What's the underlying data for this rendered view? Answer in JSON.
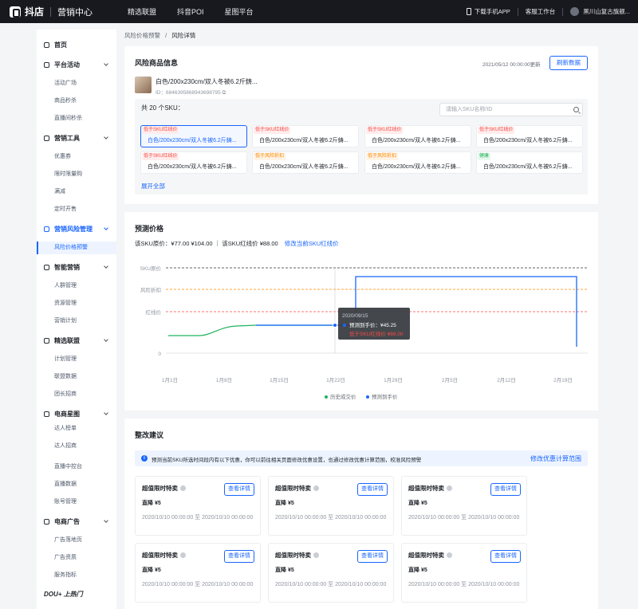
{
  "topbar": {
    "brand": "抖店",
    "sub": "营销中心",
    "nav": [
      "精选联盟",
      "抖音POI",
      "星图平台"
    ],
    "download": "下载手机APP",
    "workbench": "客服工作台",
    "shop": "黑川山复古旗舰..."
  },
  "sidebar": {
    "home": "首页",
    "groups": [
      {
        "label": "平台活动",
        "icon": "calendar-icon",
        "items": [
          "活动广场",
          "商品秒杀",
          "直播间秒杀"
        ]
      },
      {
        "label": "营销工具",
        "icon": "briefcase-icon",
        "items": [
          "优惠券",
          "限时限量购",
          "满减",
          "定时开售"
        ]
      },
      {
        "label": "营销风险管理",
        "icon": "shield-icon",
        "items": [
          "风险价格预警"
        ]
      },
      {
        "label": "智能营销",
        "icon": "chip-icon",
        "items": [
          "人群管理",
          "资源管理",
          "营销计划"
        ]
      },
      {
        "label": "精选联盟",
        "icon": "alliance-icon",
        "items": [
          "计划管理",
          "联盟数据",
          "团长招商"
        ]
      },
      {
        "label": "电商星图",
        "icon": "star-icon",
        "items": [
          "达人榜单",
          "达人招商",
          "直播中控台",
          "直播数据",
          "账号管理"
        ]
      },
      {
        "label": "电商广告",
        "icon": "ad-icon",
        "items": [
          "广告落地页",
          "广告资质",
          "服务指标"
        ]
      }
    ],
    "dou": "DOU+ 上热门"
  },
  "breadcrumb": {
    "parent": "风险价格预警",
    "sep": "/",
    "current": "风险详情"
  },
  "product_card": {
    "title": "风险商品信息",
    "refresh_time": "2021/05/12 00:00:00更新",
    "refresh_button": "刷新数据",
    "product_name": "白色/200x230cm/双人冬被6.2斤鋳...",
    "product_id": "ID：6846395868943698795 ⧉",
    "sku_count": "共 20 个SKU：",
    "search_placeholder": "请输入SKU名称/ID",
    "skus": [
      {
        "tag": "低于SKU红线价",
        "tag_type": "red",
        "desc": "白色/200x230cm/双人冬被6.2斤鋳...",
        "selected": true
      },
      {
        "tag": "低于SKU红线价",
        "tag_type": "red",
        "desc": "白色/200x230cm/双人冬被6.2斤鋳..."
      },
      {
        "tag": "低于SKU红线价",
        "tag_type": "red",
        "desc": "白色/200x230cm/双人冬被6.2斤鋳..."
      },
      {
        "tag": "低于SKU红线价",
        "tag_type": "red",
        "desc": "白色/200x230cm/双人冬被6.2斤鋳..."
      },
      {
        "tag": "低于SKU红线价",
        "tag_type": "red",
        "desc": "白色/200x230cm/双人冬被6.2斤鋳..."
      },
      {
        "tag": "低于风险折扣",
        "tag_type": "orange",
        "desc": "白色/200x230cm/双人冬被6.2斤鋳..."
      },
      {
        "tag": "低于风险折扣",
        "tag_type": "orange",
        "desc": "白色/200x230cm/双人冬被6.2斤鋳..."
      },
      {
        "tag": "健康",
        "tag_type": "green",
        "desc": "白色/200x230cm/双人冬被6.2斤鋳..."
      }
    ],
    "expand": "展开全部"
  },
  "forecast": {
    "title": "预测价格",
    "price_info": "该SKU原价：¥77.00 ¥104.00 ｜ 该SKU红线价 ¥88.00",
    "modify_link": "修改当前SKU红线价"
  },
  "chart_data": {
    "type": "line",
    "y_labels": [
      "SKU原价",
      "风险折扣",
      "红线价",
      "0"
    ],
    "x_labels": [
      "1月1日",
      "1月8日",
      "1月15日",
      "1月22日",
      "1月29日",
      "2月5日",
      "2月12日",
      "2月19日"
    ],
    "legend": [
      "历史成交价",
      "预测到手价"
    ],
    "series": [
      {
        "name": "历史成交价",
        "color": "#22b35e"
      },
      {
        "name": "预测到手价",
        "color": "#1966ff"
      }
    ],
    "reference_lines": [
      {
        "label": "SKU原价",
        "color": "#333333"
      },
      {
        "label": "风险折扣",
        "color": "#ff8800"
      },
      {
        "label": "红线价",
        "color": "#f54a45"
      }
    ],
    "tooltip": {
      "date": "2020/09/15",
      "line1": "预测到手价：¥45.25",
      "line2": "低于SKU红线价 ¥88.00"
    }
  },
  "suggestions": {
    "title": "整改建议",
    "notice": "预测当前SKU所选时间段内有以下优惠，你可以前往相关页面修改优惠设置，也通过修改优惠计算范围，校准风险预警",
    "notice_link": "修改优惠计算范围",
    "offers": [
      {
        "title": "超值限时特卖",
        "button": "查看详情",
        "sub": "直降 ¥5",
        "time": "2020/10/10 00:00:00 至 2020/10/10 00:00:00"
      },
      {
        "title": "超值限时特卖",
        "button": "查看详情",
        "sub": "直降 ¥5",
        "time": "2020/10/10 00:00:00 至 2020/10/10 00:00:00"
      },
      {
        "title": "超值限时特卖",
        "button": "查看详情",
        "sub": "直降 ¥5",
        "time": "2020/10/10 00:00:00 至 2020/10/10 00:00:00"
      },
      {
        "title": "超值限时特卖",
        "button": "查看详情",
        "sub": "直降 ¥5",
        "time": "2020/10/10 00:00:00 至 2020/10/10 00:00:00"
      },
      {
        "title": "超值限时特卖",
        "button": "查看详情",
        "sub": "直降 ¥5",
        "time": "2020/10/10 00:00:00 至 2020/10/10 00:00:00"
      },
      {
        "title": "超值限时特卖",
        "button": "查看详情",
        "sub": "直降 ¥5",
        "time": "2020/10/10 00:00:00 至 2020/10/10 00:00:00"
      }
    ]
  }
}
